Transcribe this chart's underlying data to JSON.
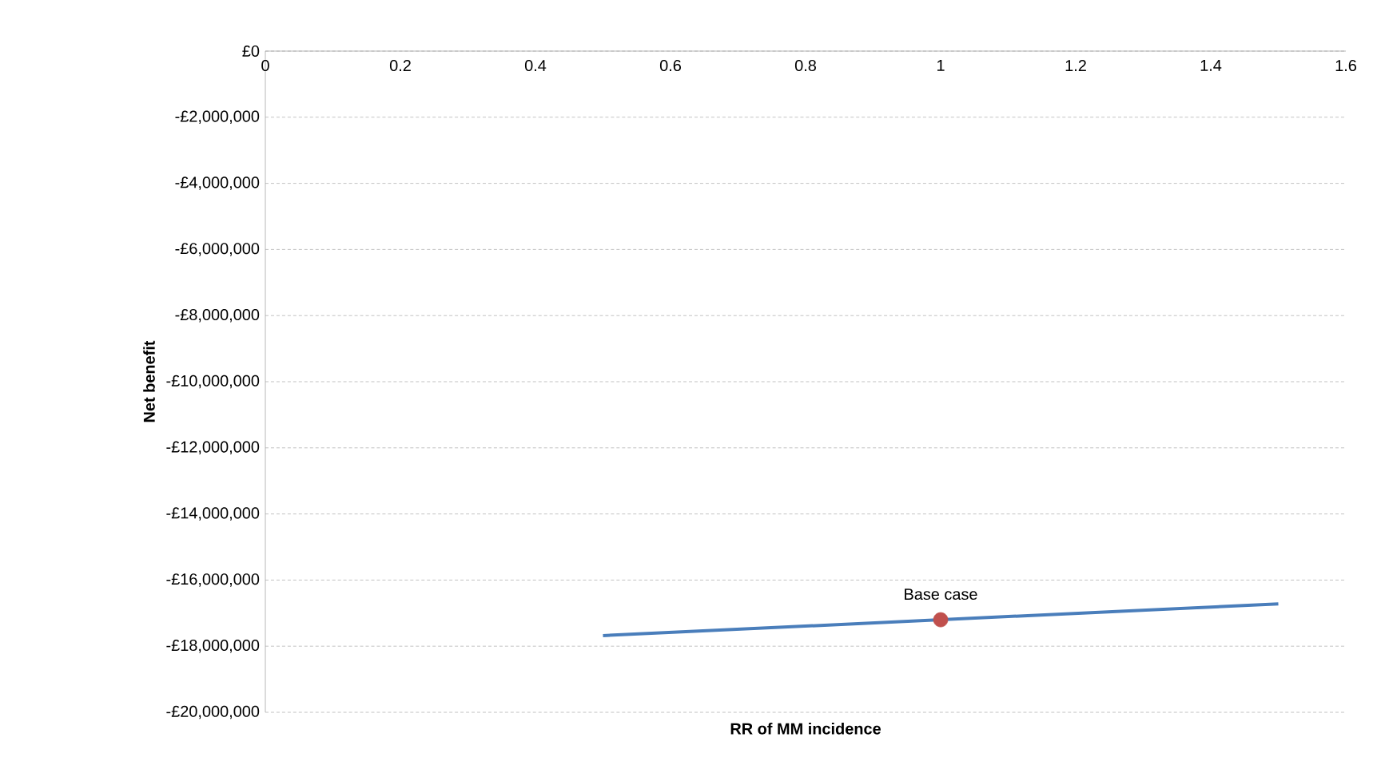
{
  "chart_data": {
    "type": "line",
    "xlabel": "RR of MM incidence",
    "ylabel": "Net benefit",
    "grid": "y",
    "xlim": [
      0,
      1.6
    ],
    "xticks": [
      0,
      0.2,
      0.4,
      0.6,
      0.8,
      1,
      1.2,
      1.4,
      1.6
    ],
    "ylim": [
      -20000000,
      0
    ],
    "yticks": [
      {
        "value": 0,
        "label": "£0"
      },
      {
        "value": -2000000,
        "label": "-£2,000,000"
      },
      {
        "value": -4000000,
        "label": "-£4,000,000"
      },
      {
        "value": -6000000,
        "label": "-£6,000,000"
      },
      {
        "value": -8000000,
        "label": "-£8,000,000"
      },
      {
        "value": -10000000,
        "label": "-£10,000,000"
      },
      {
        "value": -12000000,
        "label": "-£12,000,000"
      },
      {
        "value": -14000000,
        "label": "-£14,000,000"
      },
      {
        "value": -16000000,
        "label": "-£16,000,000"
      },
      {
        "value": -18000000,
        "label": "-£18,000,000"
      },
      {
        "value": -20000000,
        "label": "-£20,000,000"
      }
    ],
    "series": [
      {
        "color": "#4a7ebb",
        "x": [
          0.5,
          1.5
        ],
        "values": [
          -17680000,
          -16720000
        ]
      },
      {
        "type": "scatter",
        "marker": "circle",
        "color": "#c0504d",
        "x": [
          1
        ],
        "values": [
          -17200000
        ]
      }
    ],
    "annotations": [
      {
        "text": "Base case",
        "x": 1,
        "y": -17200000
      }
    ]
  }
}
